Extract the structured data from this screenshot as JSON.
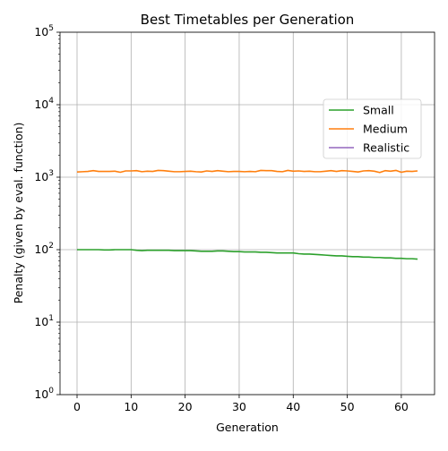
{
  "chart_data": {
    "type": "line",
    "title": "Best Timetables per Generation",
    "xlabel": "Generation",
    "ylabel": "Penalty (given by eval. function)",
    "xlim": [
      -3.15,
      66.15
    ],
    "ylim": [
      1,
      100000
    ],
    "yscale": "log",
    "grid": true,
    "legend_position": "center-right",
    "x_ticks": [
      0,
      10,
      20,
      30,
      40,
      50,
      60
    ],
    "x_tick_labels": [
      "0",
      "10",
      "20",
      "30",
      "40",
      "50",
      "60"
    ],
    "y_ticks": [
      1,
      10,
      100,
      1000,
      10000,
      100000
    ],
    "y_tick_labels": [
      {
        "base": "10",
        "exp": "0"
      },
      {
        "base": "10",
        "exp": "1"
      },
      {
        "base": "10",
        "exp": "2"
      },
      {
        "base": "10",
        "exp": "3"
      },
      {
        "base": "10",
        "exp": "4"
      },
      {
        "base": "10",
        "exp": "5"
      }
    ],
    "series": [
      {
        "name": "Small",
        "color": "#2ca02c",
        "x": [
          0,
          1,
          2,
          3,
          4,
          5,
          6,
          7,
          8,
          9,
          10,
          11,
          12,
          13,
          14,
          15,
          16,
          17,
          18,
          19,
          20,
          21,
          22,
          23,
          24,
          25,
          26,
          27,
          28,
          29,
          30,
          31,
          32,
          33,
          34,
          35,
          36,
          37,
          38,
          39,
          40,
          41,
          42,
          43,
          44,
          45,
          46,
          47,
          48,
          49,
          50,
          51,
          52,
          53,
          54,
          55,
          56,
          57,
          58,
          59,
          60,
          61,
          62,
          63
        ],
        "y": [
          100,
          100,
          100,
          100,
          100,
          99,
          99,
          100,
          100,
          100,
          100,
          98,
          97,
          98,
          98,
          98,
          98,
          98,
          97,
          97,
          97,
          97,
          96,
          95,
          95,
          95,
          96,
          96,
          95,
          94,
          94,
          93,
          93,
          93,
          92,
          92,
          91,
          90,
          90,
          90,
          90,
          88,
          87,
          87,
          86,
          85,
          84,
          83,
          82,
          82,
          81,
          80,
          80,
          79,
          79,
          78,
          78,
          77,
          77,
          76,
          76,
          75,
          75,
          74
        ]
      },
      {
        "name": "Medium",
        "color": "#ff7f0e",
        "x": [
          0,
          1,
          2,
          3,
          4,
          5,
          6,
          7,
          8,
          9,
          10,
          11,
          12,
          13,
          14,
          15,
          16,
          17,
          18,
          19,
          20,
          21,
          22,
          23,
          24,
          25,
          26,
          27,
          28,
          29,
          30,
          31,
          32,
          33,
          34,
          35,
          36,
          37,
          38,
          39,
          40,
          41,
          42,
          43,
          44,
          45,
          46,
          47,
          48,
          49,
          50,
          51,
          52,
          53,
          54,
          55,
          56,
          57,
          58,
          59,
          60,
          61,
          62,
          63
        ],
        "y": [
          1180,
          1190,
          1200,
          1230,
          1200,
          1200,
          1200,
          1210,
          1170,
          1220,
          1220,
          1230,
          1190,
          1210,
          1200,
          1240,
          1230,
          1210,
          1190,
          1190,
          1200,
          1210,
          1190,
          1180,
          1220,
          1200,
          1230,
          1210,
          1190,
          1200,
          1200,
          1190,
          1200,
          1190,
          1240,
          1230,
          1230,
          1200,
          1190,
          1240,
          1210,
          1220,
          1200,
          1210,
          1190,
          1190,
          1210,
          1230,
          1200,
          1230,
          1220,
          1200,
          1180,
          1220,
          1230,
          1210,
          1160,
          1230,
          1210,
          1240,
          1170,
          1210,
          1200,
          1220
        ]
      },
      {
        "name": "Realistic",
        "color": "#9467bd",
        "x": [],
        "y": []
      }
    ]
  }
}
